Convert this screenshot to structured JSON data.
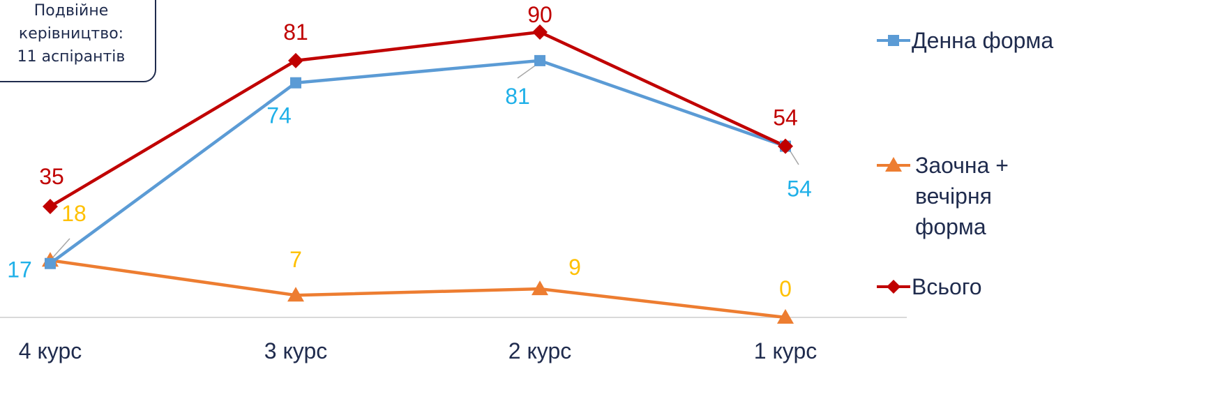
{
  "annotation": {
    "lines": [
      "Подвійне",
      "керівництво:",
      "11 аспірантів"
    ]
  },
  "chart_data": {
    "type": "line",
    "categories": [
      "4 курс",
      "3 курс",
      "2 курс",
      "1 курс"
    ],
    "series": [
      {
        "name": "Денна форма",
        "values": [
          17,
          74,
          81,
          54
        ],
        "color": "#5b9bd5",
        "label_color": "#1fb0e8",
        "marker": "square"
      },
      {
        "name": "Заочна + вечірня форма",
        "name_lines": [
          "Заочна +",
          "вечірня",
          "форма"
        ],
        "values": [
          18,
          7,
          9,
          0
        ],
        "color": "#ed7d31",
        "label_color": "#ffc000",
        "marker": "triangle"
      },
      {
        "name": "Всього",
        "values": [
          35,
          81,
          90,
          54
        ],
        "color": "#c00000",
        "label_color": "#c00000",
        "marker": "diamond"
      }
    ],
    "ylim": [
      0,
      90
    ],
    "grid": false,
    "legend_position": "right",
    "title": "",
    "xlabel": "",
    "ylabel": ""
  }
}
